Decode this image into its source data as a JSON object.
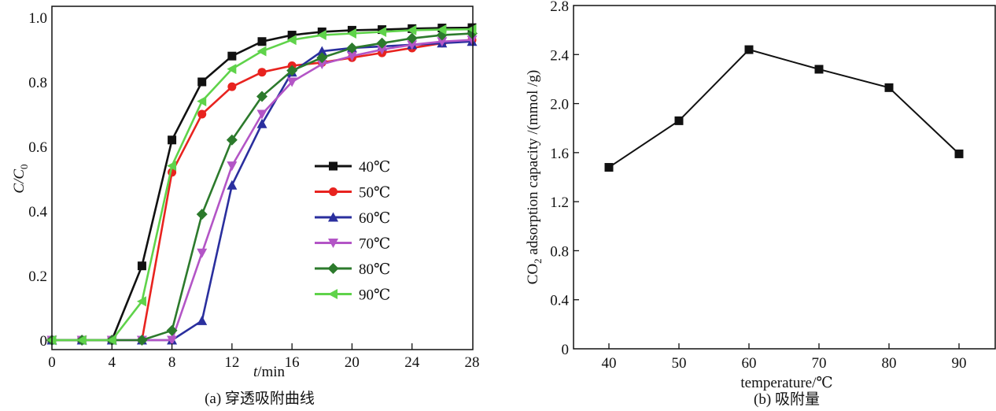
{
  "chart_data": [
    {
      "type": "line",
      "id": "a",
      "caption": "(a) 穿透吸附曲线",
      "xlabel_italic": "t",
      "xlabel_unit": "/min",
      "ylabel_main": "C",
      "ylabel_slash": "/C",
      "ylabel_sub": "0",
      "xlim": [
        0,
        28
      ],
      "ylim": [
        0,
        1.0
      ],
      "xticks": [
        0,
        4,
        8,
        12,
        16,
        20,
        24,
        28
      ],
      "xtick_labels": [
        "0",
        "4",
        "8",
        "12",
        "16",
        "20",
        "24",
        "28"
      ],
      "yticks": [
        0,
        0.2,
        0.4,
        0.6,
        0.8,
        1.0
      ],
      "ytick_labels": [
        "0",
        "0.2",
        "0.4",
        "0.6",
        "0.8",
        "1.0"
      ],
      "grid": false,
      "legend_position": "center-right",
      "x": [
        0,
        2,
        4,
        6,
        8,
        10,
        12,
        14,
        16,
        18,
        20,
        22,
        24,
        26,
        28
      ],
      "series": [
        {
          "name": "40℃",
          "color": "#111111",
          "marker": "square",
          "values": [
            0,
            0,
            0,
            0.23,
            0.62,
            0.8,
            0.88,
            0.925,
            0.945,
            0.955,
            0.96,
            0.962,
            0.965,
            0.967,
            0.968
          ]
        },
        {
          "name": "50℃",
          "color": "#e8231f",
          "marker": "circle",
          "values": [
            0,
            0,
            0,
            0,
            0.52,
            0.7,
            0.785,
            0.83,
            0.85,
            0.86,
            0.875,
            0.89,
            0.905,
            0.92,
            0.93
          ]
        },
        {
          "name": "60℃",
          "color": "#2a2f9e",
          "marker": "triangle-up",
          "values": [
            0,
            0,
            0,
            0,
            0,
            0.06,
            0.48,
            0.67,
            0.83,
            0.895,
            0.905,
            0.91,
            0.915,
            0.92,
            0.925
          ]
        },
        {
          "name": "70℃",
          "color": "#b355c6",
          "marker": "triangle-down",
          "values": [
            0,
            0,
            0,
            0,
            0,
            0.27,
            0.54,
            0.7,
            0.8,
            0.855,
            0.88,
            0.9,
            0.915,
            0.925,
            0.93
          ]
        },
        {
          "name": "80℃",
          "color": "#2c7a2c",
          "marker": "diamond",
          "values": [
            0,
            0,
            0,
            0,
            0.03,
            0.39,
            0.62,
            0.755,
            0.835,
            0.875,
            0.905,
            0.92,
            0.935,
            0.945,
            0.95
          ]
        },
        {
          "name": "90℃",
          "color": "#5fd34a",
          "marker": "triangle-left",
          "values": [
            0,
            0,
            0,
            0.12,
            0.54,
            0.74,
            0.84,
            0.895,
            0.93,
            0.945,
            0.95,
            0.955,
            0.96,
            0.962,
            0.963
          ]
        }
      ]
    },
    {
      "type": "line",
      "id": "b",
      "caption": "(b) 吸附量",
      "xlabel": "temperature/℃",
      "ylabel_pre": "CO",
      "ylabel_sub": "2",
      "ylabel_post": " adsorption capacity /(mmol /g)",
      "xlim": [
        35.6,
        95
      ],
      "ylim": [
        0,
        2.8
      ],
      "xticks": [
        40,
        50,
        60,
        70,
        80,
        90
      ],
      "xtick_labels": [
        "40",
        "50",
        "60",
        "70",
        "80",
        "90"
      ],
      "yticks": [
        0,
        0.4,
        0.8,
        1.2,
        1.6,
        2.0,
        2.4,
        2.8
      ],
      "ytick_labels": [
        "0",
        "0.4",
        "0.8",
        "1.2",
        "1.6",
        "2.0",
        "2.4",
        "2.8"
      ],
      "grid": false,
      "x": [
        40,
        50,
        60,
        70,
        80,
        90
      ],
      "series": [
        {
          "name": "CO2 adsorption capacity",
          "color": "#111111",
          "marker": "square",
          "values": [
            1.48,
            1.86,
            2.44,
            2.28,
            2.13,
            1.59
          ]
        }
      ]
    }
  ]
}
